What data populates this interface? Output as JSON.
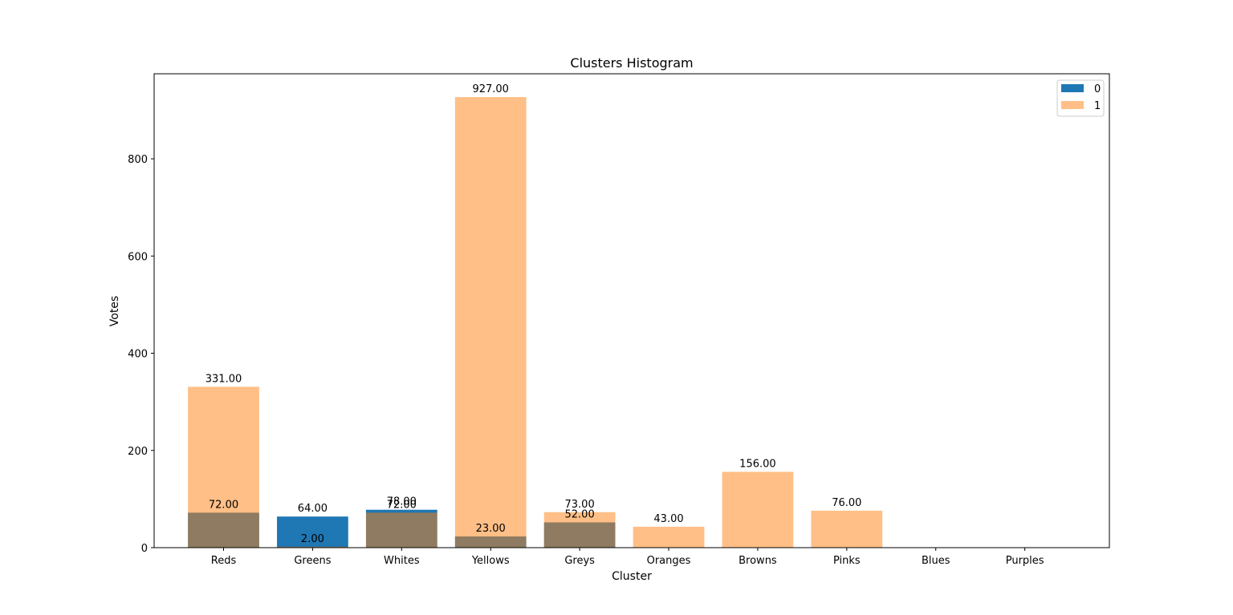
{
  "chart_data": {
    "type": "bar",
    "title": "Clusters Histogram",
    "xlabel": "Cluster",
    "ylabel": "Votes",
    "categories": [
      "Reds",
      "Greens",
      "Whites",
      "Yellows",
      "Greys",
      "Oranges",
      "Browns",
      "Pinks",
      "Blues",
      "Purples"
    ],
    "ylim": [
      0,
      975
    ],
    "yticks": [
      0,
      200,
      400,
      600,
      800
    ],
    "grid": false,
    "legend_position": "top-right",
    "overlay": true,
    "series": [
      {
        "name": "0",
        "color": "#1f77b4",
        "opacity": 1.0,
        "values": [
          72,
          64,
          78,
          23,
          52,
          0,
          0,
          0,
          0,
          null
        ],
        "labels": [
          "72.00",
          "64.00",
          "78.00",
          "23.00",
          "52.00",
          null,
          null,
          null,
          null,
          null
        ]
      },
      {
        "name": "1",
        "color": "#ff7f0e",
        "opacity": 0.5,
        "values": [
          331,
          2,
          72,
          927,
          73,
          43,
          156,
          76,
          0,
          null
        ],
        "labels": [
          "331.00",
          "2.00",
          "72.00",
          "927.00",
          "73.00",
          "43.00",
          "156.00",
          "76.00",
          null,
          null
        ]
      }
    ]
  }
}
